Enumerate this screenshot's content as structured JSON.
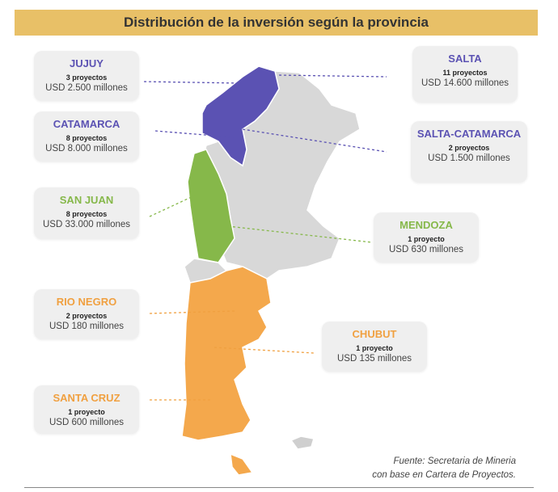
{
  "header": {
    "title": "Distribución de la inversión según la provincia"
  },
  "provinces": [
    {
      "name": "JUJUY",
      "projects": "3 proyectos",
      "amount": "USD 2.500 millones",
      "color": "#5b52b3"
    },
    {
      "name": "CATAMARCA",
      "projects": "8 proyectos",
      "amount": "USD 8.000 millones",
      "color": "#5b52b3"
    },
    {
      "name": "SAN JUAN",
      "projects": "8 proyectos",
      "amount": "USD 33.000 millones",
      "color": "#86b84a"
    },
    {
      "name": "RIO NEGRO",
      "projects": "2 proyectos",
      "amount": "USD 180 millones",
      "color": "#f0a040"
    },
    {
      "name": "SANTA CRUZ",
      "projects": "1 proyecto",
      "amount": "USD 600 millones",
      "color": "#f0a040"
    },
    {
      "name": "SALTA",
      "projects": "11 proyectos",
      "amount": "USD 14.600 millones",
      "color": "#5b52b3"
    },
    {
      "name": "SALTA-CATAMARCA",
      "projects": "2 proyectos",
      "amount": "USD 1.500 millones",
      "color": "#5b52b3"
    },
    {
      "name": "MENDOZA",
      "projects": "1 proyecto",
      "amount": "USD 630 millones",
      "color": "#86b84a"
    },
    {
      "name": "CHUBUT",
      "projects": "1 proyecto",
      "amount": "USD 135 millones",
      "color": "#f0a040"
    }
  ],
  "source": [
    "Fuente: Secretaria de Mineria",
    "con base en Cartera de Proyectos."
  ]
}
